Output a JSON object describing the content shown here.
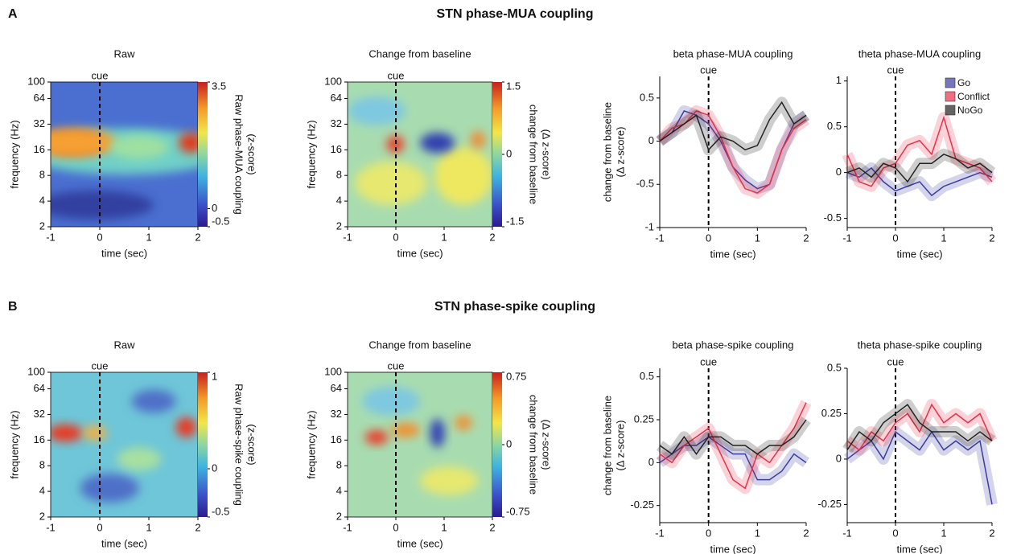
{
  "panels": [
    {
      "letter": "A",
      "title": "STN phase-MUA coupling"
    },
    {
      "letter": "B",
      "title": "STN phase-spike coupling"
    }
  ],
  "chart_data": [
    {
      "type": "heatmap",
      "title": "Raw",
      "xlabel": "time (sec)",
      "ylabel": "frequency (Hz)",
      "clabel": [
        "Raw phase-MUA coupling",
        "(z-score)"
      ],
      "xlim": [
        -1,
        2
      ],
      "xticks": [
        -1,
        0,
        1,
        2
      ],
      "ylim": [
        2,
        100
      ],
      "yticks": [
        2,
        4,
        8,
        16,
        32,
        64,
        100
      ],
      "log_y": true,
      "clim": [
        -0.5,
        3.5
      ],
      "cticks": [
        -0.5,
        0,
        3.5
      ],
      "annotations": [
        {
          "x": 0,
          "text": "cue"
        }
      ]
    },
    {
      "type": "heatmap",
      "title": "Change from baseline",
      "xlabel": "time (sec)",
      "ylabel": "frequency (Hz)",
      "clabel": [
        "change from baseline",
        "(Δ z-score)"
      ],
      "xlim": [
        -1,
        2
      ],
      "xticks": [
        -1,
        0,
        1,
        2
      ],
      "ylim": [
        2,
        100
      ],
      "yticks": [
        2,
        4,
        8,
        16,
        32,
        64,
        100
      ],
      "log_y": true,
      "clim": [
        -1.5,
        1.5
      ],
      "cticks": [
        -1.5,
        0,
        1.5
      ],
      "annotations": [
        {
          "x": 0,
          "text": "cue"
        }
      ]
    },
    {
      "type": "line",
      "title": "beta phase-MUA coupling",
      "xlabel": "time (sec)",
      "ylabel": [
        "change from baseline",
        "(Δ z-score)"
      ],
      "x": [
        -1,
        -0.75,
        -0.5,
        -0.25,
        0,
        0.25,
        0.5,
        0.75,
        1,
        1.25,
        1.5,
        1.75,
        2
      ],
      "xlim": [
        -1,
        2
      ],
      "xticks": [
        -1,
        0,
        1,
        2
      ],
      "ylim": [
        -1,
        0.75
      ],
      "yticks": [
        -1,
        -0.5,
        0,
        0.5
      ],
      "annotations": [
        {
          "x": 0,
          "text": "cue"
        }
      ],
      "series": [
        {
          "color": "#3c3ca0",
          "values": [
            0,
            0.1,
            0.35,
            0.3,
            0.2,
            0.0,
            -0.3,
            -0.45,
            -0.55,
            -0.5,
            -0.1,
            0.2,
            0.3
          ]
        },
        {
          "color": "#e8304a",
          "values": [
            0,
            0.15,
            0.2,
            0.35,
            0.3,
            0.05,
            -0.3,
            -0.55,
            -0.6,
            -0.5,
            -0.1,
            0.15,
            0.25
          ]
        },
        {
          "color": "#222222",
          "values": [
            0,
            0.1,
            0.2,
            0.3,
            -0.1,
            0.05,
            0.0,
            -0.1,
            -0.05,
            0.25,
            0.45,
            0.2,
            0.3
          ]
        }
      ]
    },
    {
      "type": "line",
      "title": "theta phase-MUA coupling",
      "xlabel": "time (sec)",
      "x": [
        -1,
        -0.75,
        -0.5,
        -0.25,
        0,
        0.25,
        0.5,
        0.75,
        1,
        1.25,
        1.5,
        1.75,
        2
      ],
      "xlim": [
        -1,
        2
      ],
      "xticks": [
        -1,
        0,
        1,
        2
      ],
      "ylim": [
        -0.6,
        1.05
      ],
      "yticks": [
        -0.5,
        0,
        0.5,
        1
      ],
      "annotations": [
        {
          "x": 0,
          "text": "cue"
        }
      ],
      "legend": "upper right",
      "series": [
        {
          "name": "Go",
          "color": "#3c3ca0",
          "values": [
            0,
            -0.05,
            0.05,
            -0.1,
            -0.2,
            -0.15,
            -0.1,
            -0.25,
            -0.15,
            -0.1,
            -0.05,
            0.0,
            -0.05
          ]
        },
        {
          "name": "Conflict",
          "color": "#e8304a",
          "values": [
            0.2,
            -0.1,
            -0.15,
            0.05,
            0.1,
            0.3,
            0.35,
            0.2,
            0.6,
            0.15,
            0.1,
            0.05,
            -0.1
          ]
        },
        {
          "name": "NoGo",
          "color": "#222222",
          "values": [
            0,
            0.05,
            -0.05,
            0.1,
            0.05,
            -0.1,
            0.1,
            0.1,
            0.2,
            0.15,
            0.05,
            0.1,
            0.0
          ]
        }
      ]
    },
    {
      "type": "heatmap",
      "title": "Raw",
      "xlabel": "time (sec)",
      "ylabel": "frequency (Hz)",
      "clabel": [
        "Raw phase-spike coupling",
        "(z-score)"
      ],
      "xlim": [
        -1,
        2
      ],
      "xticks": [
        -1,
        0,
        1,
        2
      ],
      "ylim": [
        2,
        100
      ],
      "yticks": [
        2,
        4,
        8,
        16,
        32,
        64,
        100
      ],
      "log_y": true,
      "clim": [
        -0.5,
        1
      ],
      "cticks": [
        -0.5,
        0,
        1
      ],
      "annotations": [
        {
          "x": 0,
          "text": "cue"
        }
      ]
    },
    {
      "type": "heatmap",
      "title": "Change from baseline",
      "xlabel": "time (sec)",
      "ylabel": "frequency (Hz)",
      "clabel": [
        "change from baseline",
        "(Δ z-score)"
      ],
      "xlim": [
        -1,
        2
      ],
      "xticks": [
        -1,
        0,
        1,
        2
      ],
      "ylim": [
        2,
        100
      ],
      "yticks": [
        2,
        4,
        8,
        16,
        32,
        64,
        100
      ],
      "log_y": true,
      "clim": [
        -0.75,
        0.75
      ],
      "cticks": [
        -0.75,
        0,
        0.75
      ],
      "annotations": [
        {
          "x": 0,
          "text": "cue"
        }
      ]
    },
    {
      "type": "line",
      "title": "beta phase-spike coupling",
      "xlabel": "time (sec)",
      "ylabel": [
        "change from baseline",
        "(Δ z-score)"
      ],
      "x": [
        -1,
        -0.75,
        -0.5,
        -0.25,
        0,
        0.25,
        0.5,
        0.75,
        1,
        1.25,
        1.5,
        1.75,
        2
      ],
      "xlim": [
        -1,
        2
      ],
      "xticks": [
        -1,
        0,
        1,
        2
      ],
      "ylim": [
        -0.35,
        0.55
      ],
      "yticks": [
        -0.25,
        0,
        0.25,
        0.5
      ],
      "annotations": [
        {
          "x": 0,
          "text": "cue"
        }
      ],
      "series": [
        {
          "color": "#3c3ca0",
          "values": [
            0,
            0.05,
            0.1,
            0.1,
            0.15,
            0.1,
            0.05,
            0.05,
            -0.1,
            -0.1,
            -0.05,
            0.05,
            0.0
          ]
        },
        {
          "color": "#e8304a",
          "values": [
            0.05,
            0.0,
            0.1,
            0.15,
            0.2,
            0.05,
            -0.1,
            -0.15,
            0.05,
            0.0,
            0.1,
            0.2,
            0.35
          ]
        },
        {
          "color": "#222222",
          "values": [
            0.1,
            0.05,
            0.15,
            0.05,
            0.15,
            0.15,
            0.1,
            0.1,
            0.05,
            0.1,
            0.1,
            0.15,
            0.25
          ]
        }
      ]
    },
    {
      "type": "line",
      "title": "theta phase-spike coupling",
      "xlabel": "time (sec)",
      "x": [
        -1,
        -0.75,
        -0.5,
        -0.25,
        0,
        0.25,
        0.5,
        0.75,
        1,
        1.25,
        1.5,
        1.75,
        2
      ],
      "xlim": [
        -1,
        2
      ],
      "xticks": [
        -1,
        0,
        1,
        2
      ],
      "ylim": [
        -0.35,
        0.5
      ],
      "yticks": [
        -0.25,
        0,
        0.25,
        0.5
      ],
      "annotations": [
        {
          "x": 0,
          "text": "cue"
        }
      ],
      "series": [
        {
          "color": "#3c3ca0",
          "values": [
            0,
            0.05,
            0.1,
            0.0,
            0.15,
            0.1,
            0.05,
            0.15,
            0.05,
            0.1,
            0.05,
            0.1,
            -0.25
          ]
        },
        {
          "color": "#e8304a",
          "values": [
            0.1,
            0.05,
            0.15,
            0.1,
            0.2,
            0.25,
            0.15,
            0.3,
            0.2,
            0.25,
            0.2,
            0.25,
            0.1
          ]
        },
        {
          "color": "#222222",
          "values": [
            0.05,
            0.15,
            0.1,
            0.2,
            0.25,
            0.3,
            0.2,
            0.15,
            0.15,
            0.15,
            0.1,
            0.15,
            0.1
          ]
        }
      ]
    }
  ]
}
